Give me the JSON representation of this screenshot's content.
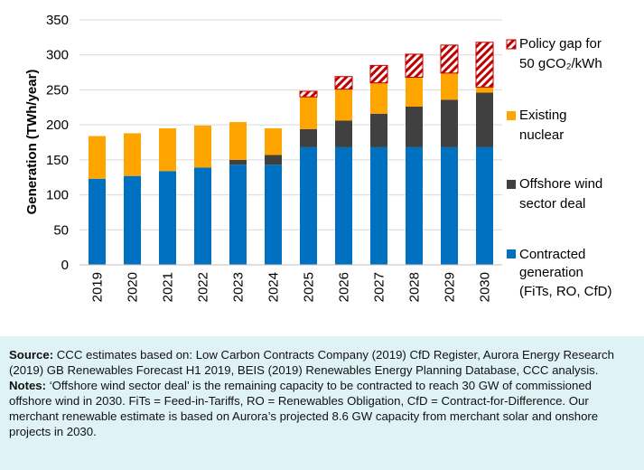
{
  "chart_data": {
    "type": "bar",
    "stacked": true,
    "categories": [
      "2019",
      "2020",
      "2021",
      "2022",
      "2023",
      "2024",
      "2025",
      "2026",
      "2027",
      "2028",
      "2029",
      "2030"
    ],
    "ylabel": "Generation (TWh/year)",
    "ylim": [
      0,
      350
    ],
    "yticks": [
      0,
      50,
      100,
      150,
      200,
      250,
      300,
      350
    ],
    "grid": true,
    "legend_position": "right",
    "series": [
      {
        "name": "Contracted generation (FiTs, RO, CfD)",
        "legend_lines": [
          "Contracted",
          "generation",
          "(FiTs, RO, CfD)"
        ],
        "color": "#0070c0",
        "pattern": false,
        "values": [
          123,
          127,
          134,
          139,
          143,
          143,
          168,
          168,
          168,
          168,
          168,
          168
        ]
      },
      {
        "name": "Offshore wind sector deal",
        "legend_lines": [
          "Offshore wind",
          "sector deal"
        ],
        "color": "#404040",
        "pattern": false,
        "values": [
          0,
          0,
          0,
          0,
          7,
          14,
          26,
          38,
          48,
          58,
          68,
          78
        ]
      },
      {
        "name": "Existing nuclear",
        "legend_lines": [
          "Existing",
          "nuclear"
        ],
        "color": "#ffa500",
        "pattern": false,
        "values": [
          61,
          61,
          61,
          60,
          54,
          38,
          46,
          45,
          44,
          42,
          38,
          8
        ]
      },
      {
        "name": "Policy gap for 50 gCO2/kWh",
        "legend_lines": [
          "Policy gap for",
          "50 gCO₂/kWh"
        ],
        "color": "#c00000",
        "pattern": true,
        "values": [
          0,
          0,
          0,
          0,
          0,
          0,
          8,
          18,
          25,
          33,
          40,
          64
        ]
      }
    ]
  },
  "source_box": {
    "source_label": "Source:",
    "source_text": " CCC estimates based on: Low Carbon Contracts Company (2019) CfD Register, Aurora Energy Research (2019) GB Renewables Forecast H1 2019, BEIS (2019) Renewables Energy Planning Database, CCC analysis.",
    "notes_label": "Notes:",
    "notes_text": " ‘Offshore wind sector deal’ is the remaining capacity to be contracted to reach 30 GW of commissioned offshore wind in 2030. FiTs = Feed-in-Tariffs, RO = Renewables Obligation, CfD = Contract-for-Difference. Our merchant renewable estimate is based on Aurora’s projected 8.6 GW capacity from merchant solar and onshore projects in 2030."
  }
}
